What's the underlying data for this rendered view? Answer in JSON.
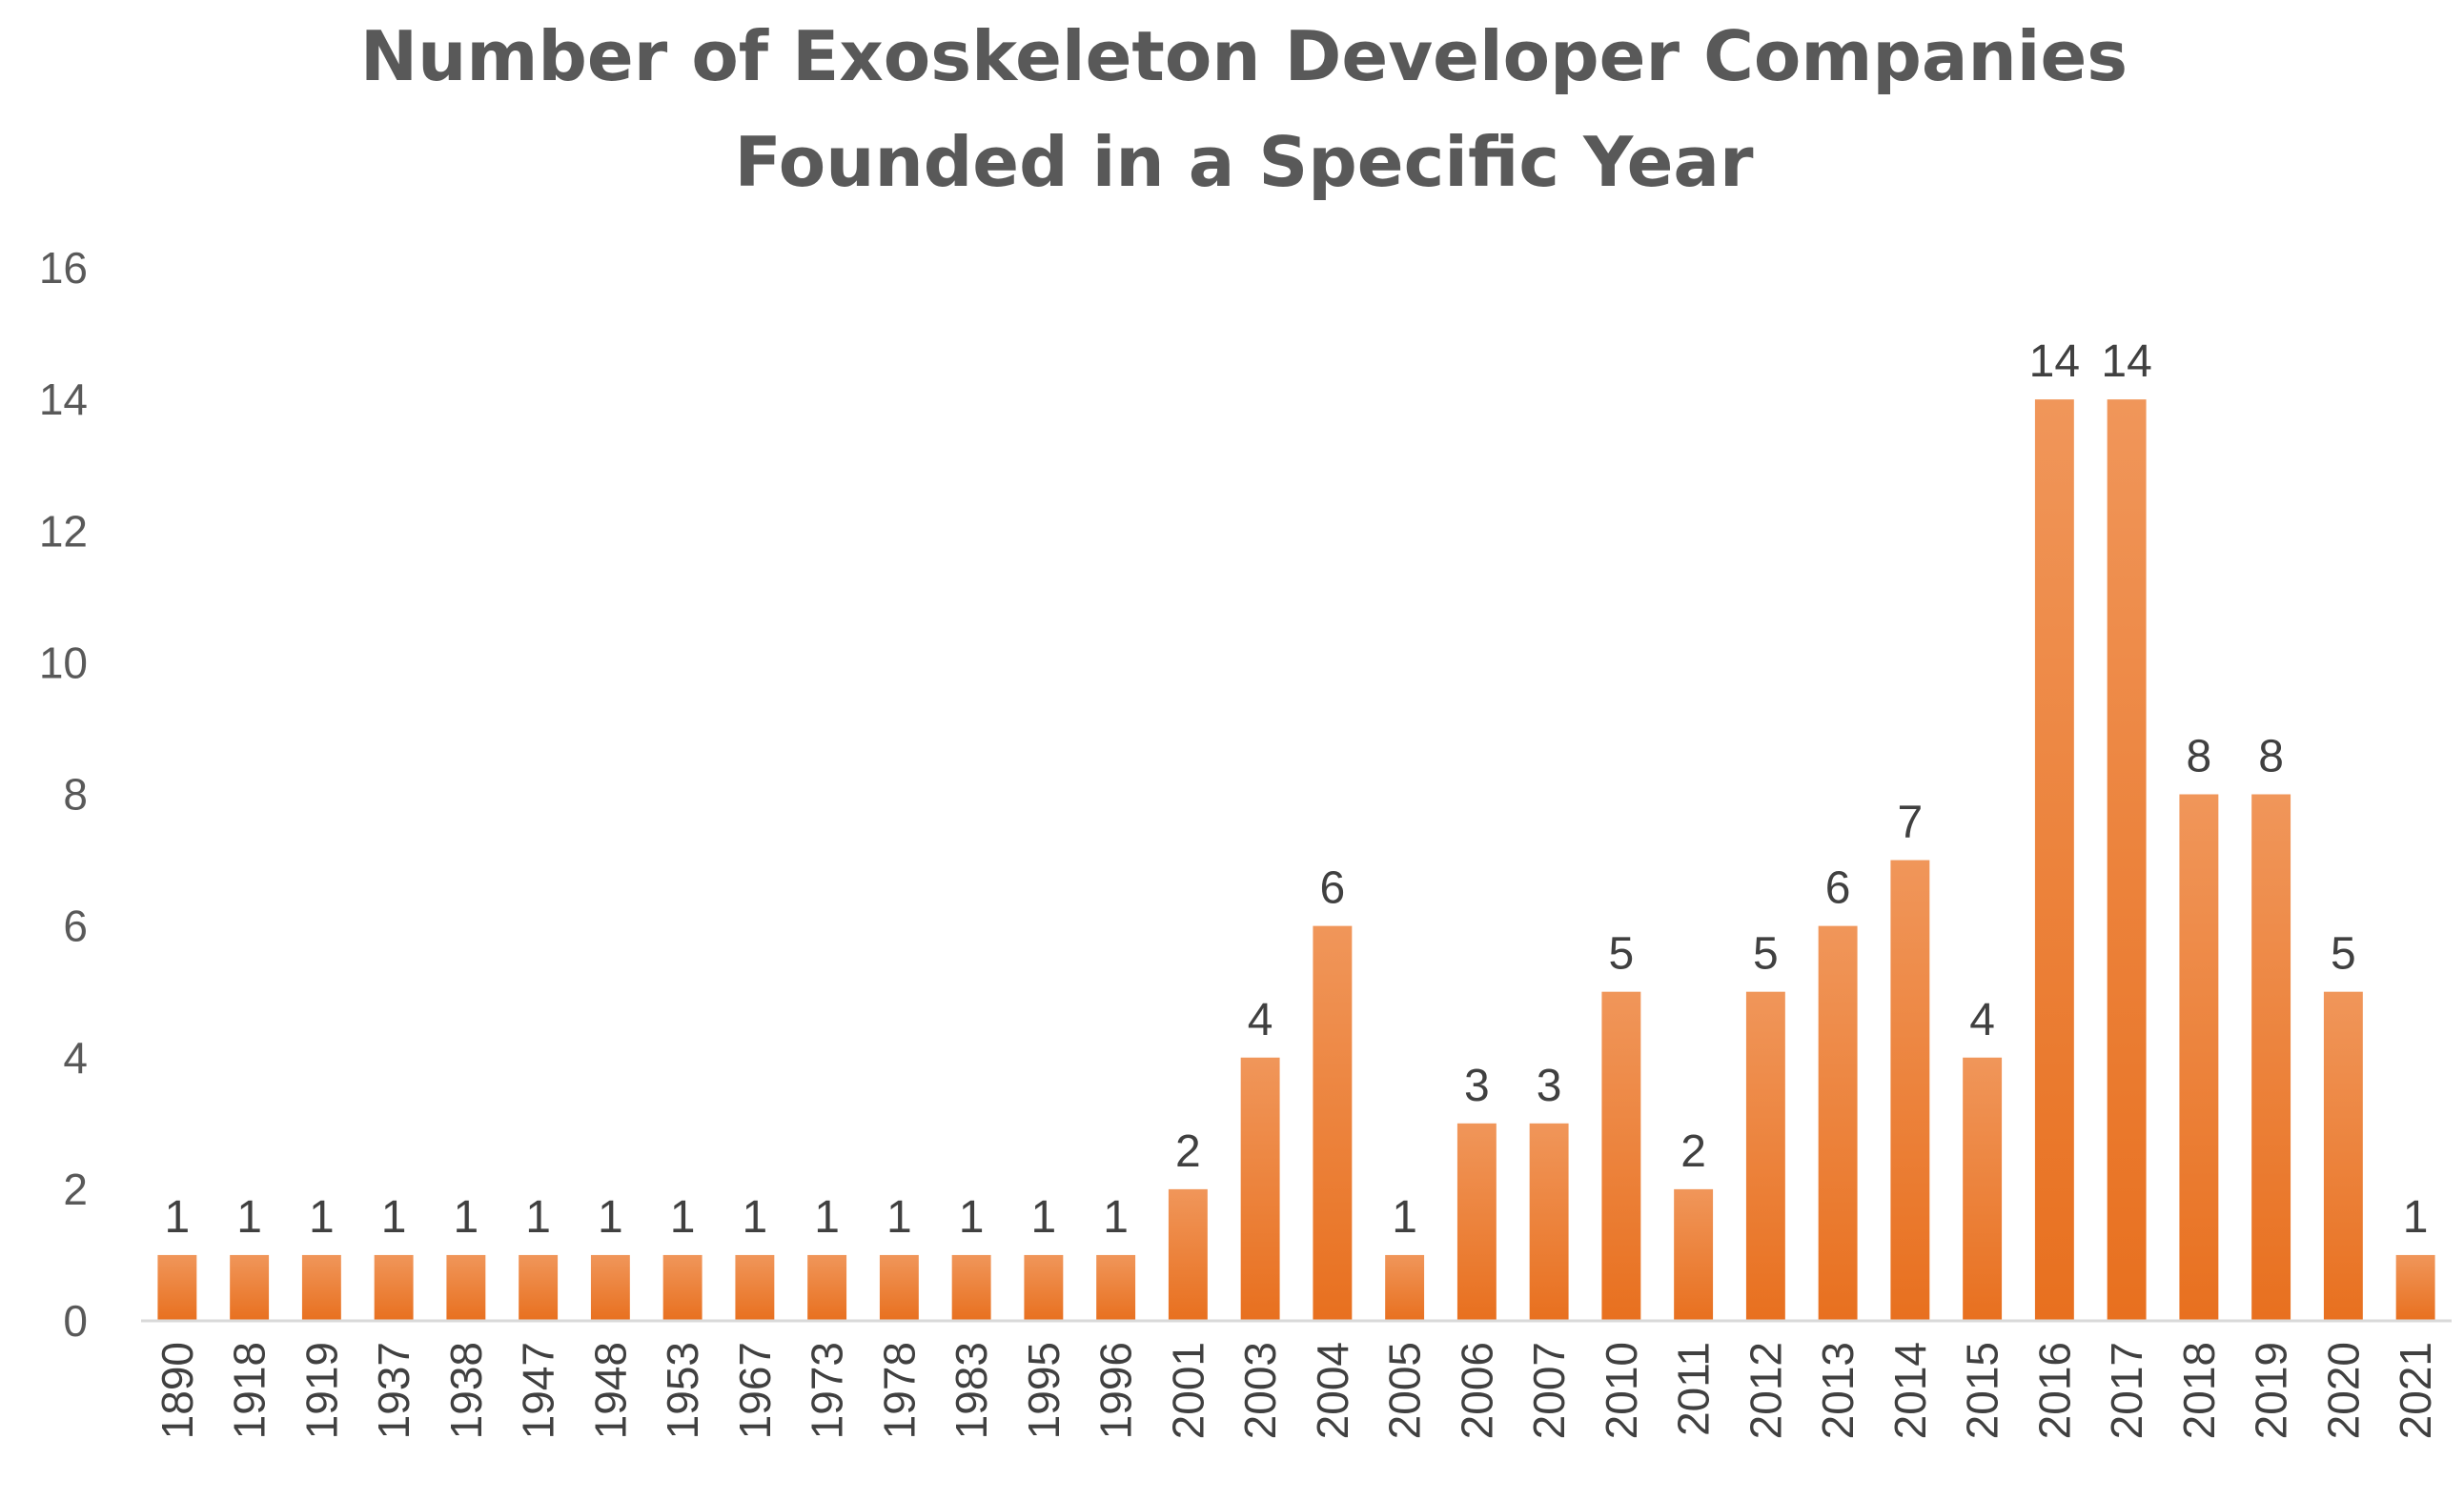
{
  "chart_data": {
    "type": "bar",
    "title": "Number of Exoskeleton Developer Companies Founded in a Specific Year",
    "title_lines": [
      "Number of Exoskeleton Developer Companies",
      "Founded in a Specific Year"
    ],
    "xlabel": "",
    "ylabel": "",
    "categories": [
      "1890",
      "1918",
      "1919",
      "1937",
      "1938",
      "1947",
      "1948",
      "1953",
      "1967",
      "1973",
      "1978",
      "1983",
      "1995",
      "1996",
      "2001",
      "2003",
      "2004",
      "2005",
      "2006",
      "2007",
      "2010",
      "2011",
      "2012",
      "2013",
      "2014",
      "2015",
      "2016",
      "2017",
      "2018",
      "2019",
      "2020",
      "2021"
    ],
    "values": [
      1,
      1,
      1,
      1,
      1,
      1,
      1,
      1,
      1,
      1,
      1,
      1,
      1,
      1,
      2,
      4,
      6,
      1,
      3,
      3,
      5,
      2,
      5,
      6,
      7,
      4,
      14,
      14,
      8,
      8,
      5,
      1
    ],
    "ylim": [
      0,
      16
    ],
    "yticks": [
      0,
      2,
      4,
      6,
      8,
      10,
      12,
      14,
      16
    ],
    "grid": false,
    "legend": "none",
    "data_labels": true,
    "colors": {
      "bar_top": "#f0965a",
      "bar_bottom": "#e8701f",
      "axis": "#d9d9d9",
      "text": "#595959"
    }
  }
}
